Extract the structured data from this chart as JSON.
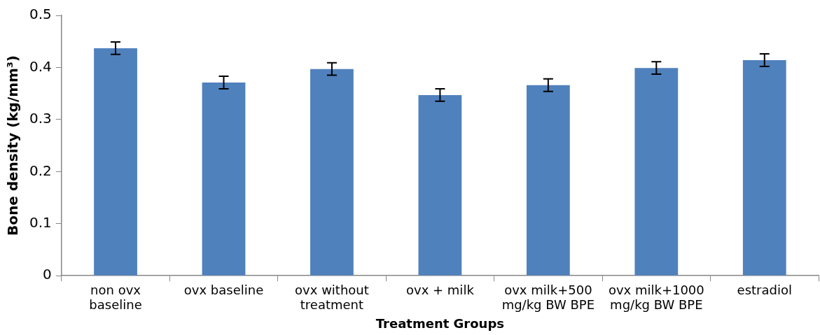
{
  "chart_data": {
    "type": "bar",
    "xlabel": "Treatment Groups",
    "ylabel": "Bone density (kg/mm³)",
    "categories": [
      "non ovx baseline",
      "ovx baseline",
      "ovx without treatment",
      "ovx + milk",
      "ovx milk+500 mg/kg BW BPE",
      "ovx milk+1000 mg/kg BW BPE",
      "estradiol"
    ],
    "values": [
      0.437,
      0.371,
      0.397,
      0.347,
      0.366,
      0.399,
      0.414
    ],
    "errors": [
      0.012,
      0.012,
      0.012,
      0.012,
      0.012,
      0.012,
      0.012
    ],
    "color": "#4f81bd",
    "ylim": [
      0,
      0.5
    ],
    "yticks": [
      0,
      0.1,
      0.2,
      0.3,
      0.4,
      0.5
    ],
    "grid": false,
    "legend": false
  }
}
